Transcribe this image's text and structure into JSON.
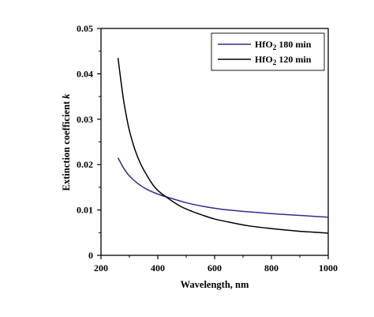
{
  "chart_data": {
    "type": "line",
    "xlabel": "Wavelength, nm",
    "ylabel_main": "Extinction coefficient ",
    "ylabel_italic": "k",
    "xlim": [
      200,
      1000
    ],
    "ylim": [
      0,
      0.05
    ],
    "x_ticks": [
      "200",
      "400",
      "600",
      "800",
      "1000"
    ],
    "y_ticks": [
      "0",
      "0.01",
      "0.02",
      "0.03",
      "0.04",
      "0.05"
    ],
    "grid": false,
    "legend_position": "top-right",
    "series": [
      {
        "name_base": "HfO",
        "name_sub": "2",
        "name_rest": " 180 min",
        "color": "#2e2e8f",
        "x": [
          260,
          280,
          300,
          330,
          360,
          400,
          440,
          500,
          560,
          620,
          700,
          800,
          900,
          1000
        ],
        "y": [
          0.0215,
          0.0192,
          0.0175,
          0.0158,
          0.0146,
          0.0135,
          0.0127,
          0.0116,
          0.0108,
          0.0102,
          0.0097,
          0.0092,
          0.0088,
          0.0084
        ]
      },
      {
        "name_base": "HfO",
        "name_sub": "2",
        "name_rest": " 120 min",
        "color": "#000000",
        "x": [
          260,
          270,
          280,
          290,
          300,
          320,
          340,
          360,
          380,
          400,
          440,
          480,
          520,
          560,
          600,
          660,
          720,
          800,
          900,
          1000
        ],
        "y": [
          0.0435,
          0.0385,
          0.034,
          0.0305,
          0.0275,
          0.0232,
          0.0201,
          0.0178,
          0.0158,
          0.0143,
          0.0124,
          0.0108,
          0.0097,
          0.0088,
          0.008,
          0.0072,
          0.0065,
          0.0059,
          0.0053,
          0.0049
        ]
      }
    ]
  }
}
